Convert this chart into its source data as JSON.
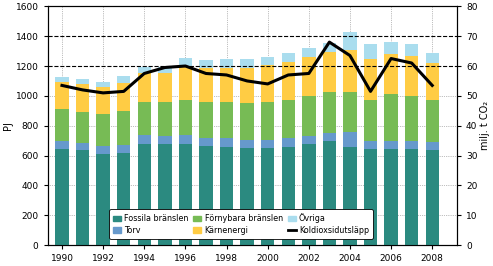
{
  "years": [
    1990,
    1991,
    1992,
    1993,
    1994,
    1995,
    1996,
    1997,
    1998,
    1999,
    2000,
    2001,
    2002,
    2003,
    2004,
    2005,
    2006,
    2007,
    2008
  ],
  "fossila": [
    645,
    635,
    610,
    620,
    680,
    675,
    680,
    665,
    660,
    650,
    648,
    660,
    675,
    695,
    655,
    645,
    645,
    645,
    638
  ],
  "torv": [
    50,
    50,
    55,
    50,
    55,
    55,
    55,
    55,
    55,
    55,
    55,
    55,
    55,
    55,
    100,
    55,
    55,
    50,
    50
  ],
  "fornybara": [
    215,
    210,
    215,
    230,
    225,
    230,
    235,
    240,
    245,
    250,
    255,
    260,
    270,
    275,
    270,
    275,
    310,
    305,
    285
  ],
  "karnenergi": [
    185,
    185,
    180,
    185,
    190,
    195,
    230,
    225,
    225,
    230,
    250,
    255,
    260,
    270,
    280,
    275,
    270,
    265,
    250
  ],
  "ovriga": [
    30,
    30,
    35,
    45,
    45,
    40,
    55,
    55,
    60,
    60,
    55,
    55,
    60,
    60,
    120,
    100,
    80,
    80,
    65
  ],
  "co2": [
    53.5,
    52.0,
    51.0,
    51.5,
    57.5,
    59.5,
    60.0,
    57.5,
    57.0,
    55.0,
    54.0,
    57.0,
    57.5,
    68.0,
    63.5,
    51.5,
    62.5,
    61.0,
    53.5
  ],
  "color_fossila": "#2b8a80",
  "color_torv": "#6699cc",
  "color_fornybara": "#77bb55",
  "color_karnenergi": "#ffcc44",
  "color_ovriga": "#aaddee",
  "color_co2": "#000000",
  "ylabel_left": "PJ",
  "ylabel_right": "milj. t CO₂",
  "ylim_left": [
    0,
    1600
  ],
  "ylim_right": [
    0,
    80
  ],
  "yticks_left": [
    0,
    200,
    400,
    600,
    800,
    1000,
    1200,
    1400,
    1600
  ],
  "yticks_right": [
    0,
    10,
    20,
    30,
    40,
    50,
    60,
    70,
    80
  ],
  "xticks": [
    1990,
    1992,
    1994,
    1996,
    1998,
    2000,
    2002,
    2004,
    2006,
    2008
  ],
  "hlines": [
    1200,
    1400
  ],
  "grid_hlines": [
    200,
    400,
    600,
    800,
    1000
  ],
  "legend_labels": [
    "Fossila bränslen",
    "Torv",
    "Förnybara bränslen",
    "Kärnenergi",
    "Övriga",
    "Koldioxsidutsläpp"
  ],
  "background_color": "#ffffff",
  "bar_width": 0.65
}
